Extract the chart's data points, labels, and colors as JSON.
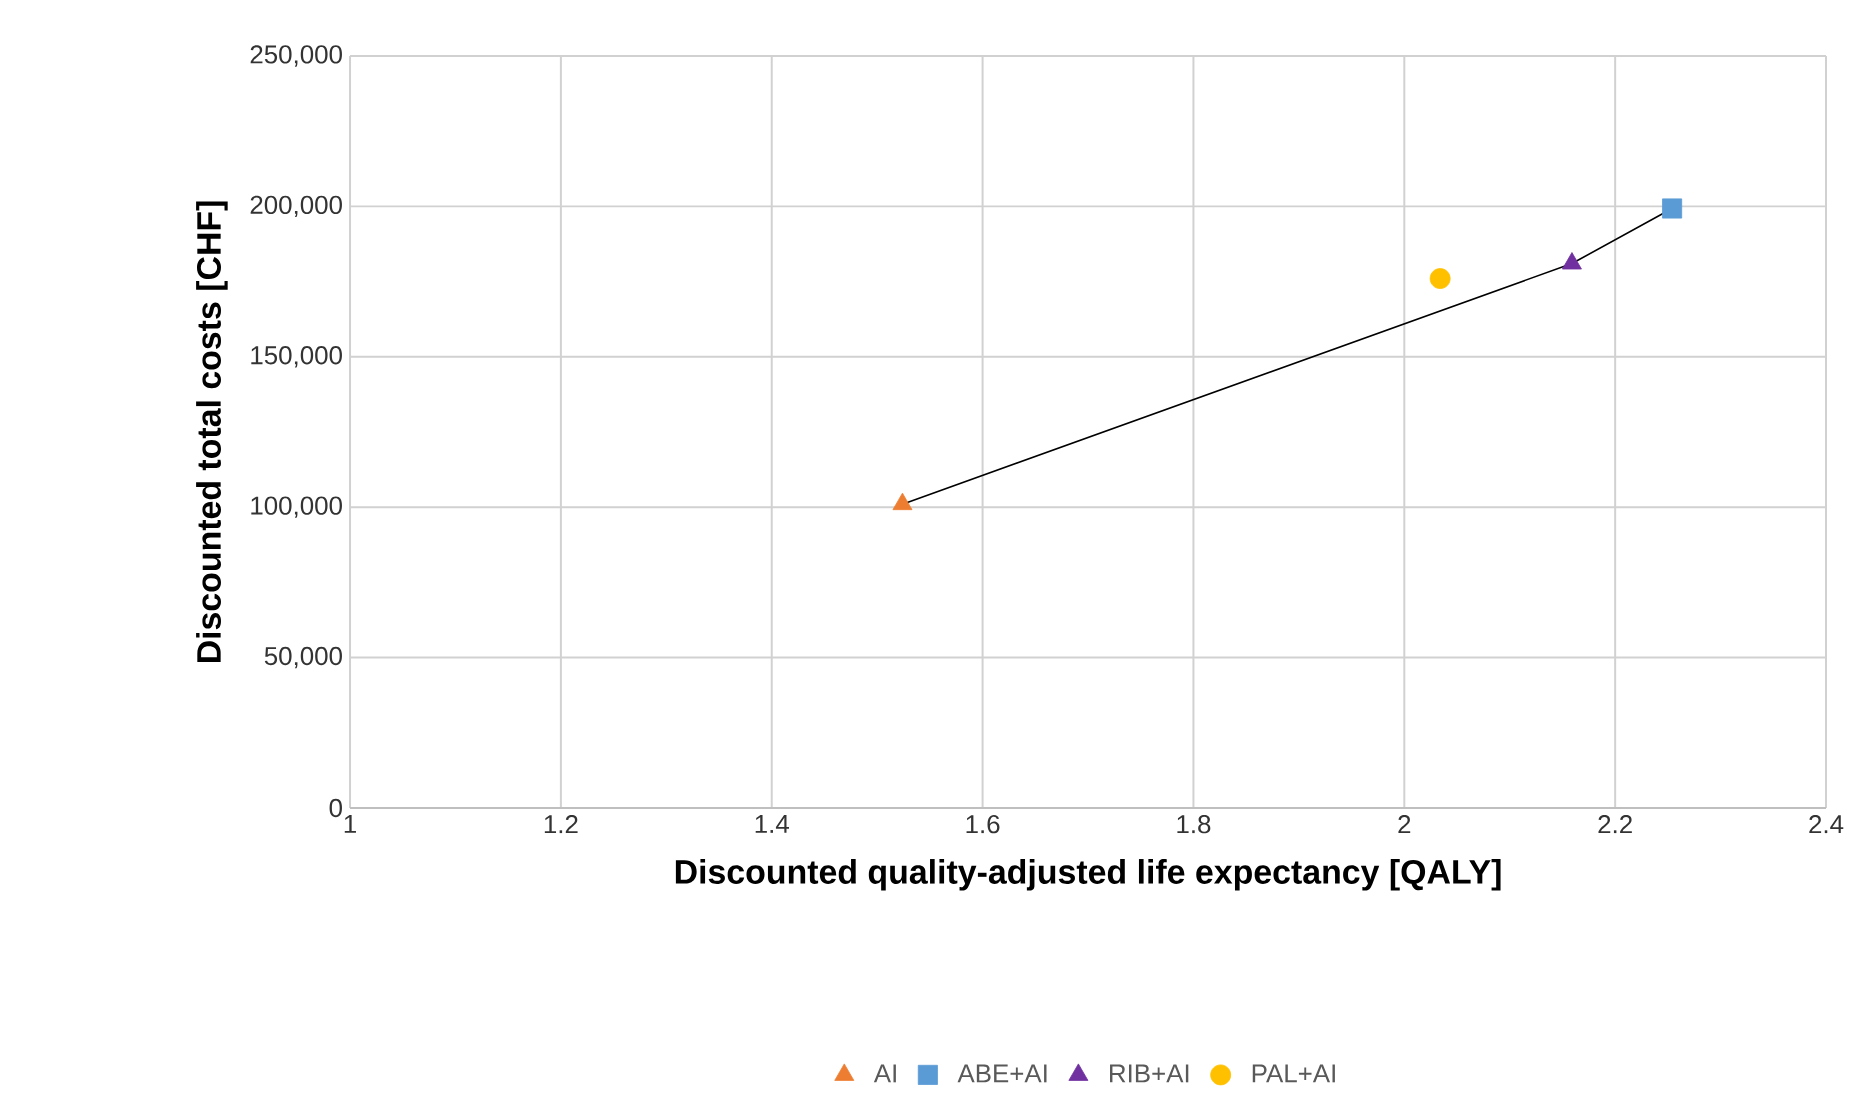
{
  "chart_data": {
    "type": "scatter",
    "xlabel": "Discounted quality-adjusted life expectancy [QALY]",
    "ylabel": "Discounted total costs [CHF]",
    "series": [
      {
        "name": "AI",
        "color": "#ed7d31",
        "marker": "triangle",
        "x": [
          1.524
        ],
        "values": [
          101000
        ]
      },
      {
        "name": "ABE+AI",
        "color": "#5b9bd5",
        "marker": "square",
        "x": [
          2.254
        ],
        "values": [
          199300
        ]
      },
      {
        "name": "RIB+AI",
        "color": "#7030a0",
        "marker": "triangle",
        "x": [
          2.159
        ],
        "values": [
          181000
        ]
      },
      {
        "name": "PAL+AI",
        "color": "#ffc000",
        "marker": "circle",
        "x": [
          2.034
        ],
        "values": [
          176000
        ]
      },
      {
        "type": "line",
        "color": "#000000",
        "marker": "none",
        "line_style": "solid",
        "x": [
          1.524,
          2.159,
          2.254
        ],
        "values": [
          101000,
          181000,
          199300
        ]
      }
    ],
    "xlim": [
      1,
      2.4
    ],
    "xticks": [
      1,
      1.2,
      1.4,
      1.6,
      1.8,
      2,
      2.2,
      2.4
    ],
    "ylim": [
      0,
      250000
    ],
    "yticks": [
      {
        "value": 0,
        "label": "0"
      },
      {
        "value": 50000,
        "label": "50,000"
      },
      {
        "value": 100000,
        "label": "100,000"
      },
      {
        "value": 150000,
        "label": "150,000"
      },
      {
        "value": 200000,
        "label": "200,000"
      },
      {
        "value": 250000,
        "label": "250,000"
      }
    ],
    "grid": true,
    "legend": "bottom"
  }
}
